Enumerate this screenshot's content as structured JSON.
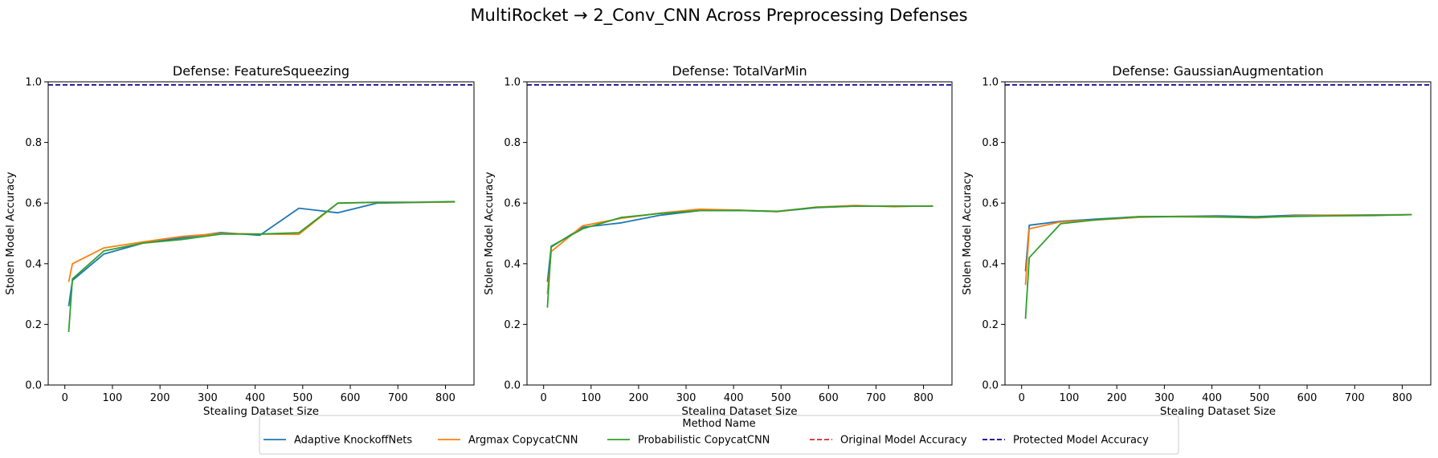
{
  "figure": {
    "title": "MultiRocket → 2_Conv_CNN Across Preprocessing Defenses"
  },
  "legend": {
    "title": "Method Name",
    "placement": "bottom-center",
    "entries": [
      {
        "label": "Adaptive KnockoffNets",
        "color": "#1f77b4",
        "style": "solid"
      },
      {
        "label": "Argmax CopycatCNN",
        "color": "#ff7f0e",
        "style": "solid"
      },
      {
        "label": "Probabilistic CopycatCNN",
        "color": "#2ca02c",
        "style": "solid"
      },
      {
        "label": "Original Model Accuracy",
        "color": "#d62728",
        "style": "dashed"
      },
      {
        "label": "Protected Model Accuracy",
        "color": "#00008b",
        "style": "dashed"
      }
    ]
  },
  "chart_data": [
    {
      "type": "line",
      "title": "Defense: FeatureSqueezing",
      "xlabel": "Stealing Dataset Size",
      "ylabel": "Stolen Model Accuracy",
      "xlim": [
        -35,
        860
      ],
      "ylim": [
        0,
        1.0
      ],
      "xticks": [
        0,
        100,
        200,
        300,
        400,
        500,
        600,
        700,
        800
      ],
      "yticks": [
        0.0,
        0.2,
        0.4,
        0.6,
        0.8,
        1.0
      ],
      "grid": false,
      "series": [
        {
          "name": "Adaptive KnockoffNets",
          "x": [
            8,
            16,
            82,
            164,
            246,
            328,
            410,
            492,
            574,
            656,
            738,
            820
          ],
          "y": [
            0.26,
            0.345,
            0.432,
            0.468,
            0.485,
            0.503,
            0.494,
            0.583,
            0.568,
            0.6,
            0.602,
            0.604
          ]
        },
        {
          "name": "Argmax CopycatCNN",
          "x": [
            8,
            16,
            82,
            164,
            246,
            328,
            410,
            492,
            574,
            656,
            738,
            820
          ],
          "y": [
            0.34,
            0.4,
            0.452,
            0.472,
            0.49,
            0.5,
            0.498,
            0.497,
            0.6,
            0.602,
            0.602,
            0.604
          ]
        },
        {
          "name": "Probabilistic CopycatCNN",
          "x": [
            8,
            16,
            82,
            164,
            246,
            328,
            410,
            492,
            574,
            656,
            738,
            820
          ],
          "y": [
            0.175,
            0.35,
            0.442,
            0.468,
            0.48,
            0.498,
            0.498,
            0.502,
            0.6,
            0.603,
            0.603,
            0.605
          ]
        }
      ],
      "reference_lines": {
        "original_model_accuracy": 0.99,
        "protected_model_accuracy": 0.99
      }
    },
    {
      "type": "line",
      "title": "Defense: TotalVarMin",
      "xlabel": "Stealing Dataset Size",
      "ylabel": "Stolen Model Accuracy",
      "xlim": [
        -35,
        860
      ],
      "ylim": [
        0,
        1.0
      ],
      "xticks": [
        0,
        100,
        200,
        300,
        400,
        500,
        600,
        700,
        800
      ],
      "yticks": [
        0.0,
        0.2,
        0.4,
        0.6,
        0.8,
        1.0
      ],
      "grid": false,
      "series": [
        {
          "name": "Adaptive KnockoffNets",
          "x": [
            8,
            16,
            82,
            164,
            246,
            328,
            410,
            492,
            574,
            656,
            738,
            820
          ],
          "y": [
            0.34,
            0.455,
            0.52,
            0.535,
            0.56,
            0.575,
            0.576,
            0.572,
            0.585,
            0.59,
            0.59,
            0.59
          ]
        },
        {
          "name": "Argmax CopycatCNN",
          "x": [
            8,
            16,
            82,
            164,
            246,
            328,
            410,
            492,
            574,
            656,
            738,
            820
          ],
          "y": [
            0.3,
            0.44,
            0.525,
            0.55,
            0.567,
            0.58,
            0.577,
            0.572,
            0.587,
            0.592,
            0.588,
            0.591
          ]
        },
        {
          "name": "Probabilistic CopycatCNN",
          "x": [
            8,
            16,
            82,
            164,
            246,
            328,
            410,
            492,
            574,
            656,
            738,
            820
          ],
          "y": [
            0.255,
            0.458,
            0.515,
            0.553,
            0.566,
            0.575,
            0.576,
            0.573,
            0.586,
            0.59,
            0.59,
            0.59
          ]
        }
      ],
      "reference_lines": {
        "original_model_accuracy": 0.99,
        "protected_model_accuracy": 0.99
      }
    },
    {
      "type": "line",
      "title": "Defense: GaussianAugmentation",
      "xlabel": "Stealing Dataset Size",
      "ylabel": "Stolen Model Accuracy",
      "xlim": [
        -35,
        860
      ],
      "ylim": [
        0,
        1.0
      ],
      "xticks": [
        0,
        100,
        200,
        300,
        400,
        500,
        600,
        700,
        800
      ],
      "yticks": [
        0.0,
        0.2,
        0.4,
        0.6,
        0.8,
        1.0
      ],
      "grid": false,
      "series": [
        {
          "name": "Adaptive KnockoffNets",
          "x": [
            8,
            16,
            82,
            164,
            246,
            328,
            410,
            492,
            574,
            656,
            738,
            820
          ],
          "y": [
            0.375,
            0.527,
            0.54,
            0.548,
            0.555,
            0.556,
            0.558,
            0.555,
            0.56,
            0.56,
            0.561,
            0.562
          ]
        },
        {
          "name": "Argmax CopycatCNN",
          "x": [
            8,
            16,
            82,
            164,
            246,
            328,
            410,
            492,
            574,
            656,
            738,
            820
          ],
          "y": [
            0.33,
            0.515,
            0.538,
            0.545,
            0.553,
            0.556,
            0.555,
            0.551,
            0.558,
            0.56,
            0.56,
            0.562
          ]
        },
        {
          "name": "Probabilistic CopycatCNN",
          "x": [
            8,
            16,
            82,
            164,
            246,
            328,
            410,
            492,
            574,
            656,
            738,
            820
          ],
          "y": [
            0.218,
            0.42,
            0.532,
            0.546,
            0.555,
            0.555,
            0.554,
            0.553,
            0.556,
            0.558,
            0.559,
            0.562
          ]
        }
      ],
      "reference_lines": {
        "original_model_accuracy": 0.99,
        "protected_model_accuracy": 0.99
      }
    }
  ]
}
